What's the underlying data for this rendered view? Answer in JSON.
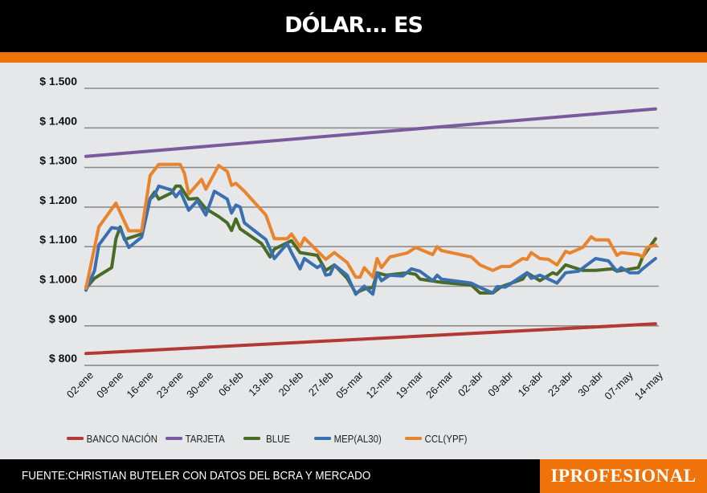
{
  "header": {
    "title": "DÓLAR... ES"
  },
  "footer": {
    "source": "FUENTE:CHRISTIAN BUTELER CON DATOS DEL BCRA Y MERCADO",
    "brand": "IPROFESIONAL"
  },
  "colors": {
    "accent": "#ef7308",
    "header_bg": "#000000",
    "plot_bg": "#e6e7e8",
    "grid": "#8c8c8c"
  },
  "chart_data": {
    "type": "line",
    "title": "DÓLAR... ES",
    "xlabel": "",
    "ylabel": "",
    "ylim": [
      800,
      1500
    ],
    "grid": true,
    "legend": "bottom",
    "y_ticks": [
      {
        "value": 1500,
        "label": "$ 1.500"
      },
      {
        "value": 1400,
        "label": "$ 1.400"
      },
      {
        "value": 1300,
        "label": "$ 1.300"
      },
      {
        "value": 1200,
        "label": "$ 1.200"
      },
      {
        "value": 1100,
        "label": "$ 1.100"
      },
      {
        "value": 1000,
        "label": "$ 1.000"
      },
      {
        "value": 900,
        "label": "$ 900"
      },
      {
        "value": 800,
        "label": "$ 800"
      }
    ],
    "x_ticks": [
      "02-ene",
      "09-ene",
      "16-ene",
      "23-ene",
      "30-ene",
      "06-feb",
      "13-feb",
      "20-feb",
      "27-feb",
      "05-mar",
      "12-mar",
      "19-mar",
      "26-mar",
      "02-abr",
      "09-abr",
      "16-abr",
      "23-abr",
      "30-abr",
      "07-may",
      "14-may"
    ],
    "series": [
      {
        "name": "BANCO NACIÓN",
        "color": "#b23a36",
        "points": [
          [
            "02-ene",
            830
          ],
          [
            "14-may",
            905
          ]
        ]
      },
      {
        "name": "TARJETA",
        "color": "#7a5a9e",
        "points": [
          [
            "02-ene",
            1328
          ],
          [
            "14-may",
            1448
          ]
        ]
      },
      {
        "name": "BLUE",
        "color": "#4a6b26",
        "points": [
          [
            "02-ene",
            995
          ],
          [
            "04-ene",
            1020
          ],
          [
            "08-ene",
            1047
          ],
          [
            "09-ene",
            1120
          ],
          [
            "10-ene",
            1150
          ],
          [
            "11-ene",
            1118
          ],
          [
            "15-ene",
            1132
          ],
          [
            "17-ene",
            1222
          ],
          [
            "18-ene",
            1238
          ],
          [
            "19-ene",
            1220
          ],
          [
            "22-ene",
            1236
          ],
          [
            "23-ene",
            1253
          ],
          [
            "24-ene",
            1253
          ],
          [
            "26-ene",
            1220
          ],
          [
            "28-ene",
            1222
          ],
          [
            "30-ene",
            1196
          ],
          [
            "02-feb",
            1176
          ],
          [
            "04-feb",
            1160
          ],
          [
            "05-feb",
            1141
          ],
          [
            "06-feb",
            1170
          ],
          [
            "07-feb",
            1145
          ],
          [
            "12-feb",
            1108
          ],
          [
            "14-feb",
            1074
          ],
          [
            "15-feb",
            1094
          ],
          [
            "19-feb",
            1115
          ],
          [
            "21-feb",
            1085
          ],
          [
            "25-feb",
            1078
          ],
          [
            "27-feb",
            1040
          ],
          [
            "29-feb",
            1054
          ],
          [
            "03-mar",
            1020
          ],
          [
            "05-mar",
            983
          ],
          [
            "07-mar",
            993
          ],
          [
            "09-mar",
            997
          ],
          [
            "10-mar",
            1034
          ],
          [
            "12-mar",
            1028
          ],
          [
            "17-mar",
            1034
          ],
          [
            "19-mar",
            1030
          ],
          [
            "20-mar",
            1018
          ],
          [
            "25-mar",
            1010
          ],
          [
            "01-abr",
            1003
          ],
          [
            "03-abr",
            983
          ],
          [
            "06-abr",
            983
          ],
          [
            "08-abr",
            999
          ],
          [
            "13-abr",
            1018
          ],
          [
            "14-abr",
            1034
          ],
          [
            "17-abr",
            1014
          ],
          [
            "20-abr",
            1034
          ],
          [
            "21-abr",
            1030
          ],
          [
            "23-abr",
            1054
          ],
          [
            "27-abr",
            1040
          ],
          [
            "30-abr",
            1040
          ],
          [
            "04-may",
            1044
          ],
          [
            "05-may",
            1038
          ],
          [
            "10-may",
            1047
          ],
          [
            "11-may",
            1074
          ],
          [
            "14-may",
            1120
          ]
        ]
      },
      {
        "name": "MEP(AL30)",
        "color": "#3a6fb0",
        "points": [
          [
            "02-ene",
            990
          ],
          [
            "04-ene",
            1040
          ],
          [
            "05-ene",
            1104
          ],
          [
            "08-ene",
            1148
          ],
          [
            "10-ene",
            1145
          ],
          [
            "12-ene",
            1098
          ],
          [
            "15-ene",
            1124
          ],
          [
            "17-ene",
            1220
          ],
          [
            "18-ene",
            1230
          ],
          [
            "19-ene",
            1253
          ],
          [
            "22-ene",
            1243
          ],
          [
            "23-ene",
            1226
          ],
          [
            "24-ene",
            1240
          ],
          [
            "26-ene",
            1192
          ],
          [
            "28-ene",
            1216
          ],
          [
            "30-ene",
            1180
          ],
          [
            "01-feb",
            1240
          ],
          [
            "04-feb",
            1220
          ],
          [
            "05-feb",
            1185
          ],
          [
            "06-feb",
            1205
          ],
          [
            "07-feb",
            1200
          ],
          [
            "08-feb",
            1160
          ],
          [
            "13-feb",
            1118
          ],
          [
            "15-feb",
            1070
          ],
          [
            "18-feb",
            1108
          ],
          [
            "19-feb",
            1085
          ],
          [
            "21-feb",
            1044
          ],
          [
            "22-feb",
            1070
          ],
          [
            "25-feb",
            1047
          ],
          [
            "26-feb",
            1054
          ],
          [
            "27-feb",
            1028
          ],
          [
            "28-feb",
            1030
          ],
          [
            "29-feb",
            1054
          ],
          [
            "03-mar",
            1028
          ],
          [
            "05-mar",
            980
          ],
          [
            "07-mar",
            1000
          ],
          [
            "09-mar",
            980
          ],
          [
            "10-mar",
            1034
          ],
          [
            "11-mar",
            1014
          ],
          [
            "13-mar",
            1028
          ],
          [
            "16-mar",
            1026
          ],
          [
            "18-mar",
            1044
          ],
          [
            "20-mar",
            1038
          ],
          [
            "23-mar",
            1014
          ],
          [
            "24-mar",
            1028
          ],
          [
            "25-mar",
            1018
          ],
          [
            "01-abr",
            1008
          ],
          [
            "03-abr",
            997
          ],
          [
            "06-abr",
            983
          ],
          [
            "07-abr",
            999
          ],
          [
            "09-abr",
            998
          ],
          [
            "14-abr",
            1034
          ],
          [
            "15-abr",
            1020
          ],
          [
            "17-abr",
            1028
          ],
          [
            "19-abr",
            1018
          ],
          [
            "21-abr",
            1008
          ],
          [
            "23-abr",
            1034
          ],
          [
            "26-abr",
            1038
          ],
          [
            "30-abr",
            1070
          ],
          [
            "03-may",
            1064
          ],
          [
            "05-may",
            1038
          ],
          [
            "06-may",
            1047
          ],
          [
            "08-may",
            1034
          ],
          [
            "10-may",
            1034
          ],
          [
            "11-may",
            1044
          ],
          [
            "14-may",
            1070
          ]
        ]
      },
      {
        "name": "CCL(YPF)",
        "color": "#e8832e",
        "points": [
          [
            "02-ene",
            995
          ],
          [
            "05-ene",
            1150
          ],
          [
            "09-ene",
            1210
          ],
          [
            "12-ene",
            1140
          ],
          [
            "15-ene",
            1140
          ],
          [
            "17-ene",
            1280
          ],
          [
            "19-ene",
            1308
          ],
          [
            "22-ene",
            1308
          ],
          [
            "24-ene",
            1308
          ],
          [
            "25-ene",
            1285
          ],
          [
            "26-ene",
            1233
          ],
          [
            "29-ene",
            1270
          ],
          [
            "30-ene",
            1245
          ],
          [
            "02-feb",
            1305
          ],
          [
            "04-feb",
            1290
          ],
          [
            "05-feb",
            1255
          ],
          [
            "06-feb",
            1260
          ],
          [
            "08-feb",
            1240
          ],
          [
            "13-feb",
            1180
          ],
          [
            "15-feb",
            1120
          ],
          [
            "18-feb",
            1120
          ],
          [
            "19-feb",
            1132
          ],
          [
            "21-feb",
            1100
          ],
          [
            "22-feb",
            1122
          ],
          [
            "27-feb",
            1068
          ],
          [
            "29-feb",
            1085
          ],
          [
            "03-mar",
            1060
          ],
          [
            "05-mar",
            1023
          ],
          [
            "06-mar",
            1023
          ],
          [
            "07-mar",
            1047
          ],
          [
            "09-mar",
            1023
          ],
          [
            "10-mar",
            1070
          ],
          [
            "11-mar",
            1047
          ],
          [
            "13-mar",
            1074
          ],
          [
            "17-mar",
            1084
          ],
          [
            "19-mar",
            1098
          ],
          [
            "23-mar",
            1080
          ],
          [
            "24-mar",
            1100
          ],
          [
            "25-mar",
            1090
          ],
          [
            "01-abr",
            1074
          ],
          [
            "03-abr",
            1054
          ],
          [
            "06-abr",
            1040
          ],
          [
            "08-abr",
            1050
          ],
          [
            "10-abr",
            1050
          ],
          [
            "13-abr",
            1070
          ],
          [
            "14-abr",
            1068
          ],
          [
            "15-abr",
            1085
          ],
          [
            "17-abr",
            1070
          ],
          [
            "19-abr",
            1068
          ],
          [
            "21-abr",
            1054
          ],
          [
            "23-abr",
            1088
          ],
          [
            "24-abr",
            1084
          ],
          [
            "27-abr",
            1098
          ],
          [
            "29-abr",
            1125
          ],
          [
            "30-abr",
            1117
          ],
          [
            "03-may",
            1117
          ],
          [
            "05-may",
            1078
          ],
          [
            "06-may",
            1085
          ],
          [
            "10-may",
            1080
          ],
          [
            "11-may",
            1074
          ],
          [
            "12-may",
            1098
          ],
          [
            "14-may",
            1104
          ]
        ]
      }
    ]
  }
}
